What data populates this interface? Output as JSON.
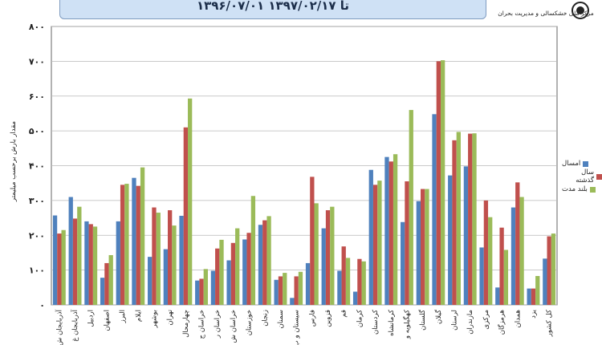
{
  "header": {
    "date_range": "۱۳۹۶/۰۷/۰۱ تا ۱۳۹۷/۰۲/۱۷",
    "organization": "مرکز ملی خشکسالی و مدیریت بحران"
  },
  "chart_data": {
    "type": "bar",
    "title": "",
    "xlabel": "",
    "ylabel": "مقدار بارش برحسب میلیمتر",
    "ylim": [
      0,
      800
    ],
    "yticks": [
      "۰",
      "۱۰۰",
      "۲۰۰",
      "۳۰۰",
      "۴۰۰",
      "۵۰۰",
      "۶۰۰",
      "۷۰۰",
      "۸۰۰"
    ],
    "grid": true,
    "legend": "right",
    "categories": [
      "آذربایجان ش",
      "آذربایجان غ",
      "اردبیل",
      "اصفهان",
      "البرز",
      "ایلام",
      "بوشهر",
      "تهران",
      "چهارمحال",
      "خراسان ج",
      "خراسان ر",
      "خراسان ش",
      "خوزستان",
      "زنجان",
      "سمنان",
      "سیستان و ب",
      "فارس",
      "قزوین",
      "قم",
      "کرمان",
      "کردستان",
      "کرمانشاه",
      "کهگیلویه و",
      "گلستان",
      "گیلان",
      "لرستان",
      "مازندران",
      "مرکزی",
      "هرمزگان",
      "همدان",
      "یزد",
      "کل کشور"
    ],
    "series": [
      {
        "name": "امسال",
        "color": "#4f81bd",
        "values": [
          257,
          310,
          240,
          78,
          240,
          365,
          138,
          160,
          256,
          70,
          98,
          128,
          188,
          230,
          72,
          20,
          120,
          220,
          98,
          38,
          388,
          425,
          238,
          298,
          548,
          372,
          398,
          165,
          50,
          280,
          47,
          133
        ]
      },
      {
        "name": "سال گذشته",
        "color": "#c0504d",
        "values": [
          205,
          248,
          232,
          120,
          345,
          342,
          280,
          272,
          510,
          75,
          162,
          178,
          207,
          243,
          82,
          82,
          368,
          272,
          168,
          132,
          345,
          412,
          355,
          333,
          700,
          473,
          492,
          300,
          222,
          352,
          47,
          197
        ]
      },
      {
        "name": "بلند مدت",
        "color": "#9bbb59",
        "values": [
          215,
          282,
          225,
          143,
          348,
          395,
          265,
          228,
          593,
          103,
          187,
          220,
          313,
          255,
          92,
          95,
          292,
          282,
          135,
          125,
          357,
          433,
          560,
          333,
          703,
          497,
          493,
          252,
          158,
          310,
          83,
          205
        ]
      }
    ]
  }
}
